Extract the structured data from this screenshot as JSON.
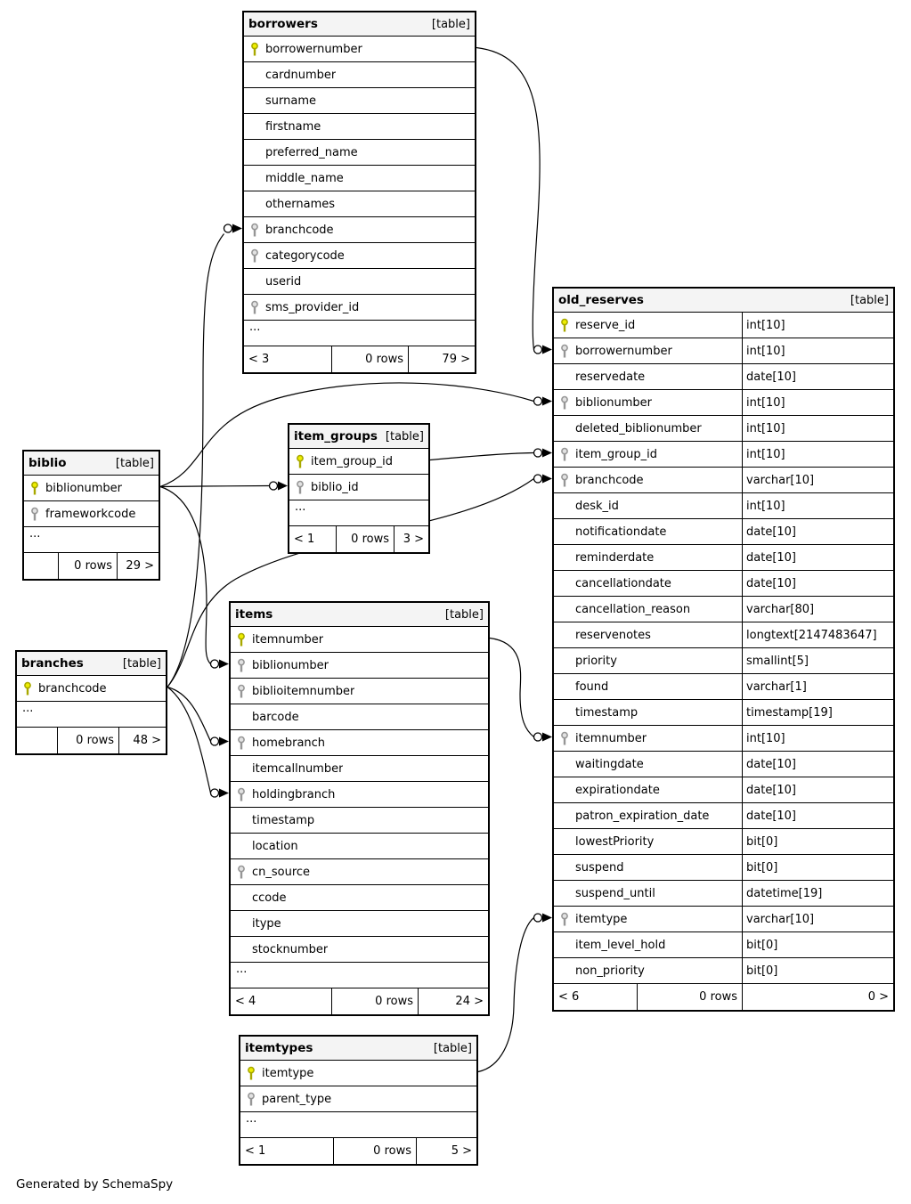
{
  "diagram": {
    "footer_note": "Generated by SchemaSpy",
    "colors": {
      "pk_key_fill": "#eeee00",
      "pk_key_stroke": "#a8a800",
      "fk_key_fill": "#e2e2e2",
      "fk_key_stroke": "#969696",
      "header_bg": "#f4f4f4",
      "border": "#000000",
      "edge": "#000000"
    },
    "tables": [
      {
        "id": "borrowers",
        "title": "borrowers",
        "tag": "[table]",
        "ellipsis": "...",
        "columns": [
          {
            "name": "borrowernumber",
            "key": "pk"
          },
          {
            "name": "cardnumber",
            "key": null
          },
          {
            "name": "surname",
            "key": null
          },
          {
            "name": "firstname",
            "key": null
          },
          {
            "name": "preferred_name",
            "key": null
          },
          {
            "name": "middle_name",
            "key": null
          },
          {
            "name": "othernames",
            "key": null
          },
          {
            "name": "branchcode",
            "key": "fk"
          },
          {
            "name": "categorycode",
            "key": "fk"
          },
          {
            "name": "userid",
            "key": null
          },
          {
            "name": "sms_provider_id",
            "key": "fk"
          }
        ],
        "footer": {
          "prev": "< 3",
          "rows": "0 rows",
          "next": "79 >"
        }
      },
      {
        "id": "old_reserves",
        "title": "old_reserves",
        "tag": "[table]",
        "ellipsis": null,
        "columns": [
          {
            "name": "reserve_id",
            "key": "pk",
            "type": "int[10]"
          },
          {
            "name": "borrowernumber",
            "key": "fk",
            "type": "int[10]"
          },
          {
            "name": "reservedate",
            "key": null,
            "type": "date[10]"
          },
          {
            "name": "biblionumber",
            "key": "fk",
            "type": "int[10]"
          },
          {
            "name": "deleted_biblionumber",
            "key": null,
            "type": "int[10]"
          },
          {
            "name": "item_group_id",
            "key": "fk",
            "type": "int[10]"
          },
          {
            "name": "branchcode",
            "key": "fk",
            "type": "varchar[10]"
          },
          {
            "name": "desk_id",
            "key": null,
            "type": "int[10]"
          },
          {
            "name": "notificationdate",
            "key": null,
            "type": "date[10]"
          },
          {
            "name": "reminderdate",
            "key": null,
            "type": "date[10]"
          },
          {
            "name": "cancellationdate",
            "key": null,
            "type": "date[10]"
          },
          {
            "name": "cancellation_reason",
            "key": null,
            "type": "varchar[80]"
          },
          {
            "name": "reservenotes",
            "key": null,
            "type": "longtext[2147483647]"
          },
          {
            "name": "priority",
            "key": null,
            "type": "smallint[5]"
          },
          {
            "name": "found",
            "key": null,
            "type": "varchar[1]"
          },
          {
            "name": "timestamp",
            "key": null,
            "type": "timestamp[19]"
          },
          {
            "name": "itemnumber",
            "key": "fk",
            "type": "int[10]"
          },
          {
            "name": "waitingdate",
            "key": null,
            "type": "date[10]"
          },
          {
            "name": "expirationdate",
            "key": null,
            "type": "date[10]"
          },
          {
            "name": "patron_expiration_date",
            "key": null,
            "type": "date[10]"
          },
          {
            "name": "lowestPriority",
            "key": null,
            "type": "bit[0]"
          },
          {
            "name": "suspend",
            "key": null,
            "type": "bit[0]"
          },
          {
            "name": "suspend_until",
            "key": null,
            "type": "datetime[19]"
          },
          {
            "name": "itemtype",
            "key": "fk",
            "type": "varchar[10]"
          },
          {
            "name": "item_level_hold",
            "key": null,
            "type": "bit[0]"
          },
          {
            "name": "non_priority",
            "key": null,
            "type": "bit[0]"
          }
        ],
        "footer": {
          "prev": "< 6",
          "rows": "0 rows",
          "next": "0 >"
        }
      },
      {
        "id": "item_groups",
        "title": "item_groups",
        "tag": "[table]",
        "ellipsis": "...",
        "columns": [
          {
            "name": "item_group_id",
            "key": "pk"
          },
          {
            "name": "biblio_id",
            "key": "fk"
          }
        ],
        "footer": {
          "prev": "< 1",
          "rows": "0 rows",
          "next": "3 >"
        }
      },
      {
        "id": "biblio",
        "title": "biblio",
        "tag": "[table]",
        "ellipsis": "...",
        "columns": [
          {
            "name": "biblionumber",
            "key": "pk"
          },
          {
            "name": "frameworkcode",
            "key": "fk"
          }
        ],
        "footer": {
          "prev": "",
          "rows": "0 rows",
          "next": "29 >"
        }
      },
      {
        "id": "branches",
        "title": "branches",
        "tag": "[table]",
        "ellipsis": "...",
        "columns": [
          {
            "name": "branchcode",
            "key": "pk"
          }
        ],
        "footer": {
          "prev": "",
          "rows": "0 rows",
          "next": "48 >"
        }
      },
      {
        "id": "items",
        "title": "items",
        "tag": "[table]",
        "ellipsis": "...",
        "columns": [
          {
            "name": "itemnumber",
            "key": "pk"
          },
          {
            "name": "biblionumber",
            "key": "fk"
          },
          {
            "name": "biblioitemnumber",
            "key": "fk"
          },
          {
            "name": "barcode",
            "key": null
          },
          {
            "name": "homebranch",
            "key": "fk"
          },
          {
            "name": "itemcallnumber",
            "key": null
          },
          {
            "name": "holdingbranch",
            "key": "fk"
          },
          {
            "name": "timestamp",
            "key": null
          },
          {
            "name": "location",
            "key": null
          },
          {
            "name": "cn_source",
            "key": "fk"
          },
          {
            "name": "ccode",
            "key": null
          },
          {
            "name": "itype",
            "key": null
          },
          {
            "name": "stocknumber",
            "key": null
          }
        ],
        "footer": {
          "prev": "< 4",
          "rows": "0 rows",
          "next": "24 >"
        }
      },
      {
        "id": "itemtypes",
        "title": "itemtypes",
        "tag": "[table]",
        "ellipsis": "...",
        "columns": [
          {
            "name": "itemtype",
            "key": "pk"
          },
          {
            "name": "parent_type",
            "key": "fk"
          }
        ],
        "footer": {
          "prev": "< 1",
          "rows": "0 rows",
          "next": "5 >"
        }
      }
    ],
    "relationships": [
      {
        "from": "borrowers.borrowernumber",
        "to": "old_reserves.borrowernumber"
      },
      {
        "from": "biblio.biblionumber",
        "to": "item_groups.biblio_id"
      },
      {
        "from": "biblio.biblionumber",
        "to": "old_reserves.biblionumber"
      },
      {
        "from": "biblio.biblionumber",
        "to": "items.biblionumber"
      },
      {
        "from": "item_groups.item_group_id",
        "to": "old_reserves.item_group_id"
      },
      {
        "from": "branches.branchcode",
        "to": "old_reserves.branchcode"
      },
      {
        "from": "branches.branchcode",
        "to": "borrowers.branchcode"
      },
      {
        "from": "branches.branchcode",
        "to": "items.homebranch"
      },
      {
        "from": "branches.branchcode",
        "to": "items.holdingbranch"
      },
      {
        "from": "items.itemnumber",
        "to": "old_reserves.itemnumber"
      },
      {
        "from": "itemtypes.itemtype",
        "to": "old_reserves.itemtype"
      }
    ]
  }
}
